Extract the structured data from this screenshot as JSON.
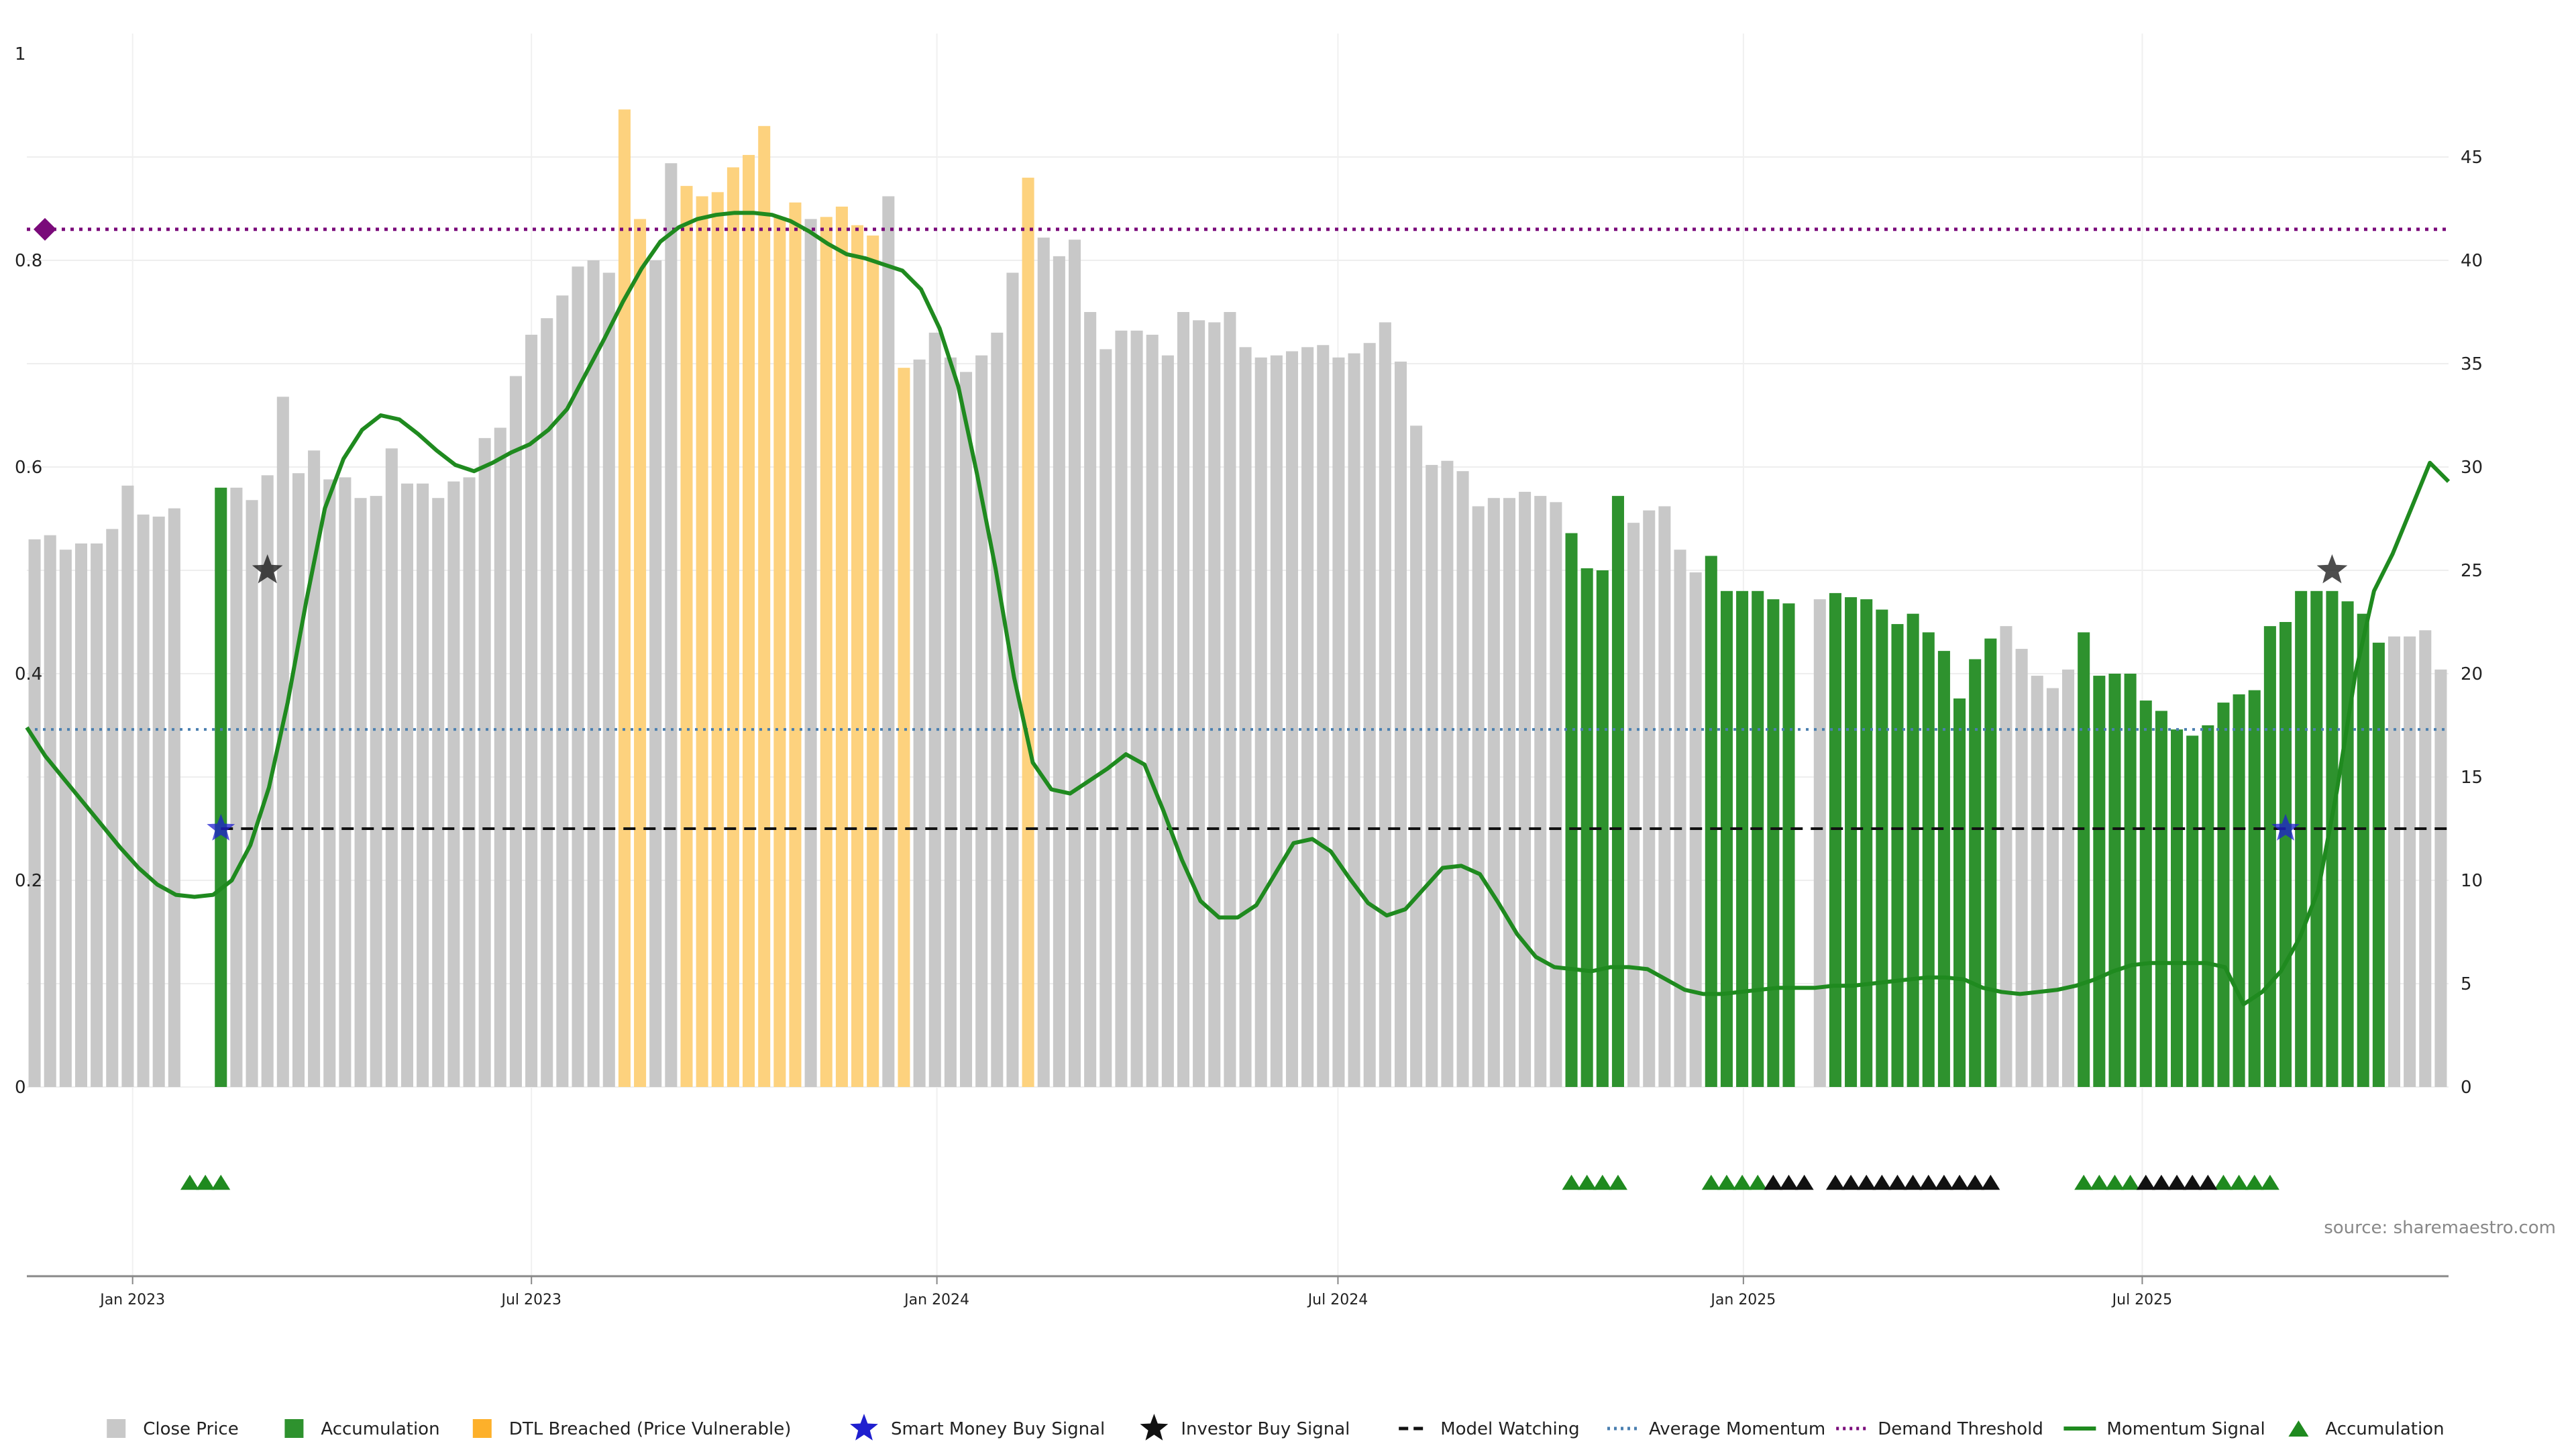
{
  "chart_data": {
    "type": "bar",
    "title": "",
    "source": "source: sharemaestro.com",
    "left_axis": {
      "ylim": [
        0,
        1
      ],
      "ticks": [
        0,
        0.2,
        0.4,
        0.6,
        0.8,
        1
      ],
      "tick_labels": [
        "0",
        "0.2",
        "0.4",
        "0.6",
        "0.8",
        "1"
      ]
    },
    "right_axis": {
      "ylim": [
        0,
        50
      ],
      "ticks": [
        0,
        5,
        10,
        15,
        20,
        25,
        30,
        35,
        40,
        45
      ],
      "tick_labels": [
        "0",
        "5",
        "10",
        "15",
        "20",
        "25",
        "30",
        "35",
        "40",
        "45"
      ]
    },
    "x_axis": {
      "type": "date",
      "range": [
        "2022-11-14",
        "2025-11-17"
      ],
      "ticks": [
        "2023-01-01",
        "2023-07-01",
        "2024-01-01",
        "2024-07-01",
        "2025-01-01",
        "2025-07-01"
      ],
      "tick_labels": [
        "Jan 2023",
        "Jul 2023",
        "Jan 2024",
        "Jul 2024",
        "Jan 2025",
        "Jul 2025"
      ]
    },
    "grid": true,
    "legend_position": "bottom-center",
    "colors": {
      "close_price": "#c8c8c8",
      "accumulation": "#2e922e",
      "dtl_breached": "#fdd27e",
      "momentum": "#1f8a1f",
      "model_watching": "#111111",
      "average_momentum": "#4a7fb0",
      "demand_threshold": "#7a0a7a",
      "smart_money": "#1f1fcf",
      "investor": "#111111"
    },
    "series": [
      {
        "name": "Close Price",
        "kind": "bar",
        "axis": "right",
        "start_date": "2022-11-14",
        "interval": "week",
        "values": [
          26.5,
          26.7,
          26.0,
          26.3,
          26.3,
          27.0,
          29.1,
          27.7,
          27.6,
          28.0,
          0,
          0,
          29.0,
          29.0,
          28.4,
          29.6,
          33.4,
          29.7,
          30.8,
          29.4,
          29.5,
          28.5,
          28.6,
          30.9,
          29.2,
          29.2,
          28.5,
          29.3,
          29.5,
          31.4,
          31.9,
          34.4,
          36.4,
          37.2,
          38.3,
          39.7,
          40.0,
          39.4,
          47.3,
          42.0,
          40.0,
          44.7,
          43.6,
          43.1,
          43.3,
          44.5,
          45.1,
          46.5,
          42.1,
          42.8,
          42.0,
          42.1,
          42.6,
          41.7,
          41.2,
          43.1,
          34.8,
          35.2,
          36.5,
          35.3,
          34.6,
          35.4,
          36.5,
          39.4,
          44.0,
          41.1,
          40.2,
          41.0,
          37.5,
          35.7,
          36.6,
          36.6,
          36.4,
          35.4,
          37.5,
          37.1,
          37.0,
          37.5,
          35.8,
          35.3,
          35.4,
          35.6,
          35.8,
          35.9,
          35.3,
          35.5,
          36.0,
          37.0,
          35.1,
          32.0,
          30.1,
          30.3,
          29.8,
          28.1,
          28.5,
          28.5,
          28.8,
          28.6,
          28.3,
          26.8,
          25.1,
          25.0,
          28.6,
          27.3,
          27.9,
          28.1,
          26.0,
          24.9,
          25.7,
          24.0,
          24.0,
          24.0,
          23.6,
          23.4,
          0,
          23.6,
          23.9,
          23.7,
          23.6,
          23.1,
          22.4,
          22.9,
          22.0,
          21.1,
          18.8,
          20.7,
          21.7,
          22.3,
          21.2,
          19.9,
          19.3,
          20.2,
          22.0,
          19.9,
          20.0,
          20.0,
          18.7,
          18.2,
          17.3,
          17.0,
          17.5,
          18.6,
          19.0,
          19.2,
          22.3,
          22.5,
          24.0,
          24.0,
          24.0,
          23.5,
          22.9,
          21.5,
          21.8,
          21.8,
          22.1,
          20.2
        ]
      },
      {
        "name": "Accumulation",
        "kind": "bar-highlight",
        "indices": [
          10,
          11,
          12,
          99,
          100,
          101,
          102,
          108,
          109,
          110,
          111,
          112,
          113,
          114,
          116,
          117,
          118,
          119,
          120,
          121,
          122,
          123,
          124,
          125,
          126,
          132,
          133,
          134,
          135,
          136,
          137,
          138,
          139,
          140,
          141,
          142,
          143,
          144,
          145,
          146,
          147,
          148,
          149,
          150,
          151
        ]
      },
      {
        "name": "DTL Breached (Price Vulnerable)",
        "kind": "bar-highlight",
        "indices": [
          38,
          39,
          42,
          43,
          44,
          45,
          46,
          47,
          48,
          49,
          51,
          52,
          53,
          54,
          56,
          64
        ]
      },
      {
        "name": "Momentum Signal",
        "kind": "line",
        "axis": "right",
        "x_index_start": 0,
        "values": [
          17.4,
          16.0,
          14.9,
          13.8,
          12.7,
          11.6,
          10.6,
          9.8,
          9.3,
          9.2,
          9.3,
          10.0,
          11.7,
          14.5,
          18.6,
          23.5,
          28.0,
          30.4,
          31.8,
          32.5,
          32.3,
          31.6,
          30.8,
          30.1,
          29.8,
          30.2,
          30.7,
          31.1,
          31.8,
          32.8,
          34.5,
          36.2,
          38.0,
          39.6,
          40.9,
          41.6,
          42.0,
          42.2,
          42.3,
          42.3,
          42.2,
          41.9,
          41.4,
          40.8,
          40.3,
          40.1,
          39.8,
          39.5,
          38.6,
          36.7,
          33.9,
          29.7,
          25.1,
          19.8,
          15.7,
          14.4,
          14.2,
          14.8,
          15.4,
          16.1,
          15.6,
          13.4,
          11.0,
          9.0,
          8.2,
          8.2,
          8.8,
          10.3,
          11.8,
          12.0,
          11.4,
          10.1,
          8.9,
          8.3,
          8.6,
          9.6,
          10.6,
          10.7,
          10.3,
          8.9,
          7.4,
          6.3,
          5.8,
          5.7,
          5.6,
          5.8,
          5.8,
          5.7,
          5.2,
          4.7,
          4.5,
          4.5,
          4.6,
          4.7,
          4.8,
          4.8,
          4.8,
          4.9,
          4.9,
          5.0,
          5.1,
          5.2,
          5.3,
          5.3,
          5.2,
          4.8,
          4.6,
          4.5,
          4.6,
          4.7,
          4.9,
          5.2,
          5.6,
          5.9,
          6.0,
          6.0,
          6.0,
          6.0,
          5.8,
          4.0,
          4.6,
          5.6,
          7.2,
          9.5,
          14.3,
          20.0,
          24.0,
          25.8,
          28.0,
          30.2,
          29.3
        ],
        "x_index_map": "indices 0-84 then interpolated to end"
      },
      {
        "name": "Model Watching",
        "kind": "hline",
        "axis": "right",
        "value": 12.5,
        "from_index": 12
      },
      {
        "name": "Average Momentum",
        "kind": "hline",
        "axis": "right",
        "value": 17.3
      },
      {
        "name": "Demand Threshold",
        "kind": "hline",
        "axis": "right",
        "value": 41.5
      },
      {
        "name": "Smart Money Buy Signal",
        "kind": "marker",
        "points": [
          {
            "index": 12,
            "value": 12.5
          },
          {
            "index": 145,
            "value": 12.5
          }
        ]
      },
      {
        "name": "Investor Buy Signal",
        "kind": "marker",
        "points": [
          {
            "index": 15,
            "value": 25.0
          },
          {
            "index": 148,
            "value": 25.0
          }
        ]
      },
      {
        "name": "Accumulation",
        "kind": "triangle-markers",
        "green_indices": [
          10,
          11,
          12,
          99,
          100,
          101,
          102,
          108,
          109,
          110,
          111,
          132,
          133,
          134,
          135,
          141,
          142,
          143,
          144
        ],
        "black_indices": [
          112,
          113,
          114,
          116,
          117,
          118,
          119,
          120,
          121,
          122,
          123,
          124,
          125,
          126,
          136,
          137,
          138,
          139,
          140
        ]
      }
    ],
    "legend": [
      {
        "label": "Close Price",
        "symbol": "square",
        "color": "#c8c8c8"
      },
      {
        "label": "Accumulation",
        "symbol": "square",
        "color": "#2e922e"
      },
      {
        "label": "DTL Breached (Price Vulnerable)",
        "symbol": "square",
        "color": "#fdb02a"
      },
      {
        "label": "Smart Money Buy Signal",
        "symbol": "star",
        "color": "#1f1fcf"
      },
      {
        "label": "Investor Buy Signal",
        "symbol": "star",
        "color": "#111111"
      },
      {
        "label": "Model Watching",
        "symbol": "dash",
        "color": "#111111"
      },
      {
        "label": "Average Momentum",
        "symbol": "dot",
        "color": "#4a7fb0"
      },
      {
        "label": "Demand Threshold",
        "symbol": "dot",
        "color": "#7a0a7a"
      },
      {
        "label": "Momentum Signal",
        "symbol": "line",
        "color": "#1f8a1f"
      },
      {
        "label": "Accumulation",
        "symbol": "triangle",
        "color": "#1f8a1f"
      }
    ]
  }
}
